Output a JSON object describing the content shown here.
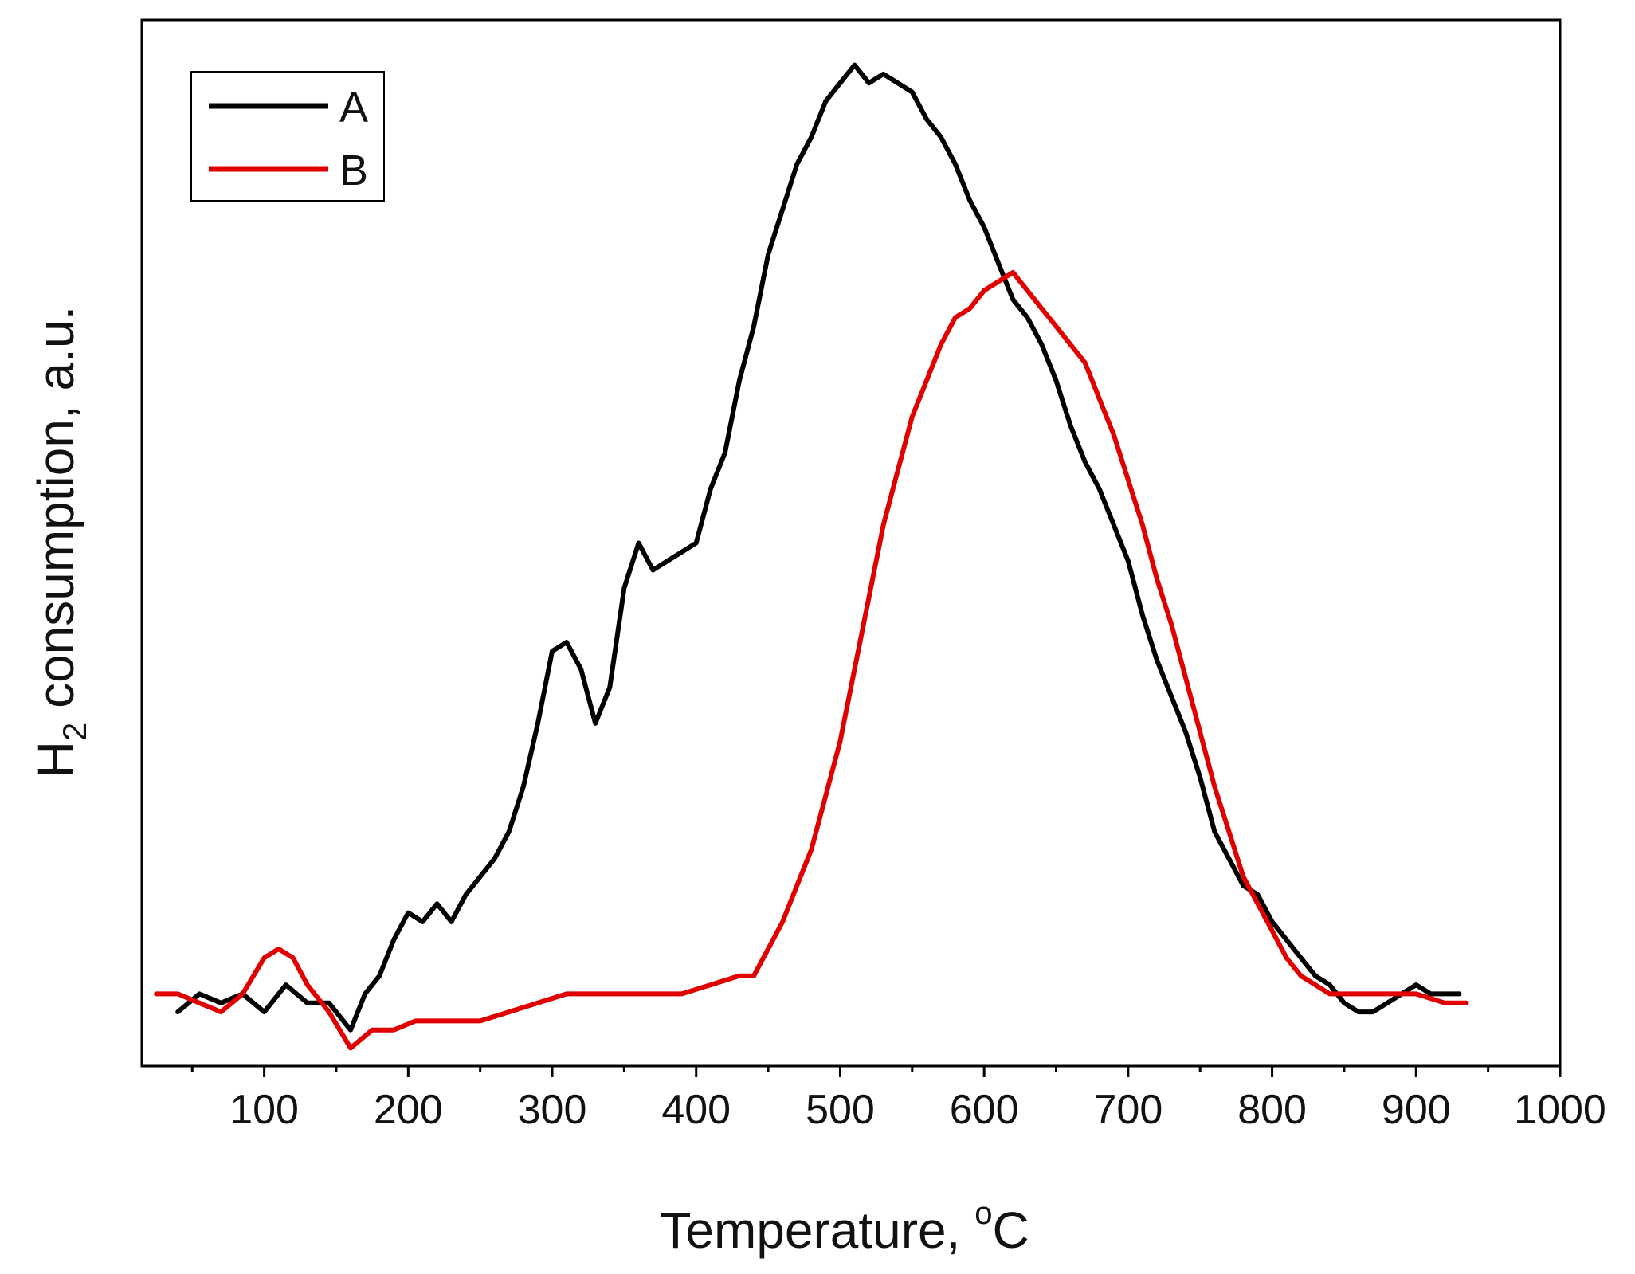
{
  "chart_data": {
    "type": "line",
    "title": "",
    "xlabel": "Temperature, °C",
    "xlabel_parts": {
      "base": "Temperature, ",
      "sup": "o",
      "unit": "C"
    },
    "ylabel": "H2 consumption, a.u.",
    "ylabel_parts": {
      "base": "H",
      "sub": "2",
      "rest": " consumption, a.u."
    },
    "xlim": [
      15,
      1000
    ],
    "ylim": [
      -0.06,
      1.1
    ],
    "xticks": [
      100,
      200,
      300,
      400,
      500,
      600,
      700,
      800,
      900,
      1000
    ],
    "yticks_visible": false,
    "grid": false,
    "legend_position": "top-left",
    "series": [
      {
        "name": "A",
        "color": "#000000",
        "x": [
          40,
          55,
          70,
          85,
          100,
          115,
          130,
          145,
          160,
          170,
          180,
          190,
          200,
          210,
          220,
          230,
          240,
          250,
          260,
          270,
          280,
          290,
          300,
          310,
          320,
          330,
          340,
          350,
          360,
          370,
          380,
          390,
          400,
          410,
          420,
          430,
          440,
          450,
          460,
          470,
          480,
          490,
          500,
          510,
          520,
          530,
          540,
          550,
          560,
          570,
          580,
          590,
          600,
          610,
          620,
          630,
          640,
          650,
          660,
          670,
          680,
          690,
          700,
          710,
          720,
          730,
          740,
          750,
          760,
          770,
          780,
          790,
          800,
          810,
          820,
          830,
          840,
          850,
          860,
          870,
          880,
          890,
          900,
          910,
          920,
          930
        ],
        "y": [
          0.0,
          0.02,
          0.01,
          0.02,
          0.0,
          0.03,
          0.01,
          0.01,
          -0.02,
          0.02,
          0.04,
          0.08,
          0.11,
          0.1,
          0.12,
          0.1,
          0.13,
          0.15,
          0.17,
          0.2,
          0.25,
          0.32,
          0.4,
          0.41,
          0.38,
          0.32,
          0.36,
          0.47,
          0.52,
          0.49,
          0.5,
          0.51,
          0.52,
          0.58,
          0.62,
          0.7,
          0.76,
          0.84,
          0.89,
          0.94,
          0.97,
          1.01,
          1.03,
          1.05,
          1.03,
          1.04,
          1.03,
          1.02,
          0.99,
          0.97,
          0.94,
          0.9,
          0.87,
          0.83,
          0.79,
          0.77,
          0.74,
          0.7,
          0.65,
          0.61,
          0.58,
          0.54,
          0.5,
          0.44,
          0.39,
          0.35,
          0.31,
          0.26,
          0.2,
          0.17,
          0.14,
          0.13,
          0.1,
          0.08,
          0.06,
          0.04,
          0.03,
          0.01,
          0.0,
          0.0,
          0.01,
          0.02,
          0.03,
          0.02,
          0.02,
          0.02
        ]
      },
      {
        "name": "B",
        "color": "#e00000",
        "x": [
          25,
          40,
          55,
          70,
          85,
          100,
          110,
          120,
          130,
          145,
          160,
          175,
          190,
          205,
          220,
          235,
          250,
          270,
          290,
          310,
          330,
          350,
          370,
          390,
          410,
          430,
          440,
          450,
          460,
          470,
          480,
          490,
          500,
          510,
          520,
          530,
          540,
          550,
          560,
          570,
          580,
          590,
          600,
          610,
          620,
          630,
          640,
          650,
          660,
          670,
          680,
          690,
          700,
          710,
          720,
          730,
          740,
          750,
          760,
          770,
          780,
          790,
          800,
          810,
          820,
          830,
          840,
          850,
          860,
          880,
          900,
          920,
          935
        ],
        "y": [
          0.02,
          0.02,
          0.01,
          0.0,
          0.02,
          0.06,
          0.07,
          0.06,
          0.03,
          0.0,
          -0.04,
          -0.02,
          -0.02,
          -0.01,
          -0.01,
          -0.01,
          -0.01,
          0.0,
          0.01,
          0.02,
          0.02,
          0.02,
          0.02,
          0.02,
          0.03,
          0.04,
          0.04,
          0.07,
          0.1,
          0.14,
          0.18,
          0.24,
          0.3,
          0.38,
          0.46,
          0.54,
          0.6,
          0.66,
          0.7,
          0.74,
          0.77,
          0.78,
          0.8,
          0.81,
          0.82,
          0.8,
          0.78,
          0.76,
          0.74,
          0.72,
          0.68,
          0.64,
          0.59,
          0.54,
          0.48,
          0.43,
          0.37,
          0.31,
          0.25,
          0.2,
          0.15,
          0.12,
          0.09,
          0.06,
          0.04,
          0.03,
          0.02,
          0.02,
          0.02,
          0.02,
          0.02,
          0.01,
          0.01
        ]
      }
    ]
  }
}
